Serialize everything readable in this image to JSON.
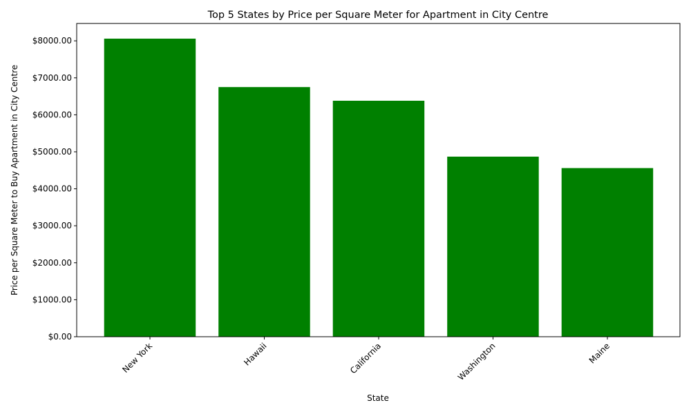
{
  "chart_data": {
    "type": "bar",
    "title": "Top 5 States by Price per Square Meter for Apartment in City Centre",
    "xlabel": "State",
    "ylabel": "Price per Square Meter to Buy Apartment in City Centre",
    "categories": [
      "New York",
      "Hawaii",
      "California",
      "Washington",
      "Maine"
    ],
    "values": [
      8060,
      6750,
      6380,
      4870,
      4560
    ],
    "ylim": [
      0,
      8470
    ],
    "yticks": [
      0,
      1000,
      2000,
      3000,
      4000,
      5000,
      6000,
      7000,
      8000
    ],
    "ytick_labels": [
      "$0.00",
      "$1000.00",
      "$2000.00",
      "$3000.00",
      "$4000.00",
      "$5000.00",
      "$6000.00",
      "$7000.00",
      "$8000.00"
    ],
    "bar_color": "#008000",
    "grid": false,
    "legend": "none",
    "xtick_rotation_deg": 45
  }
}
